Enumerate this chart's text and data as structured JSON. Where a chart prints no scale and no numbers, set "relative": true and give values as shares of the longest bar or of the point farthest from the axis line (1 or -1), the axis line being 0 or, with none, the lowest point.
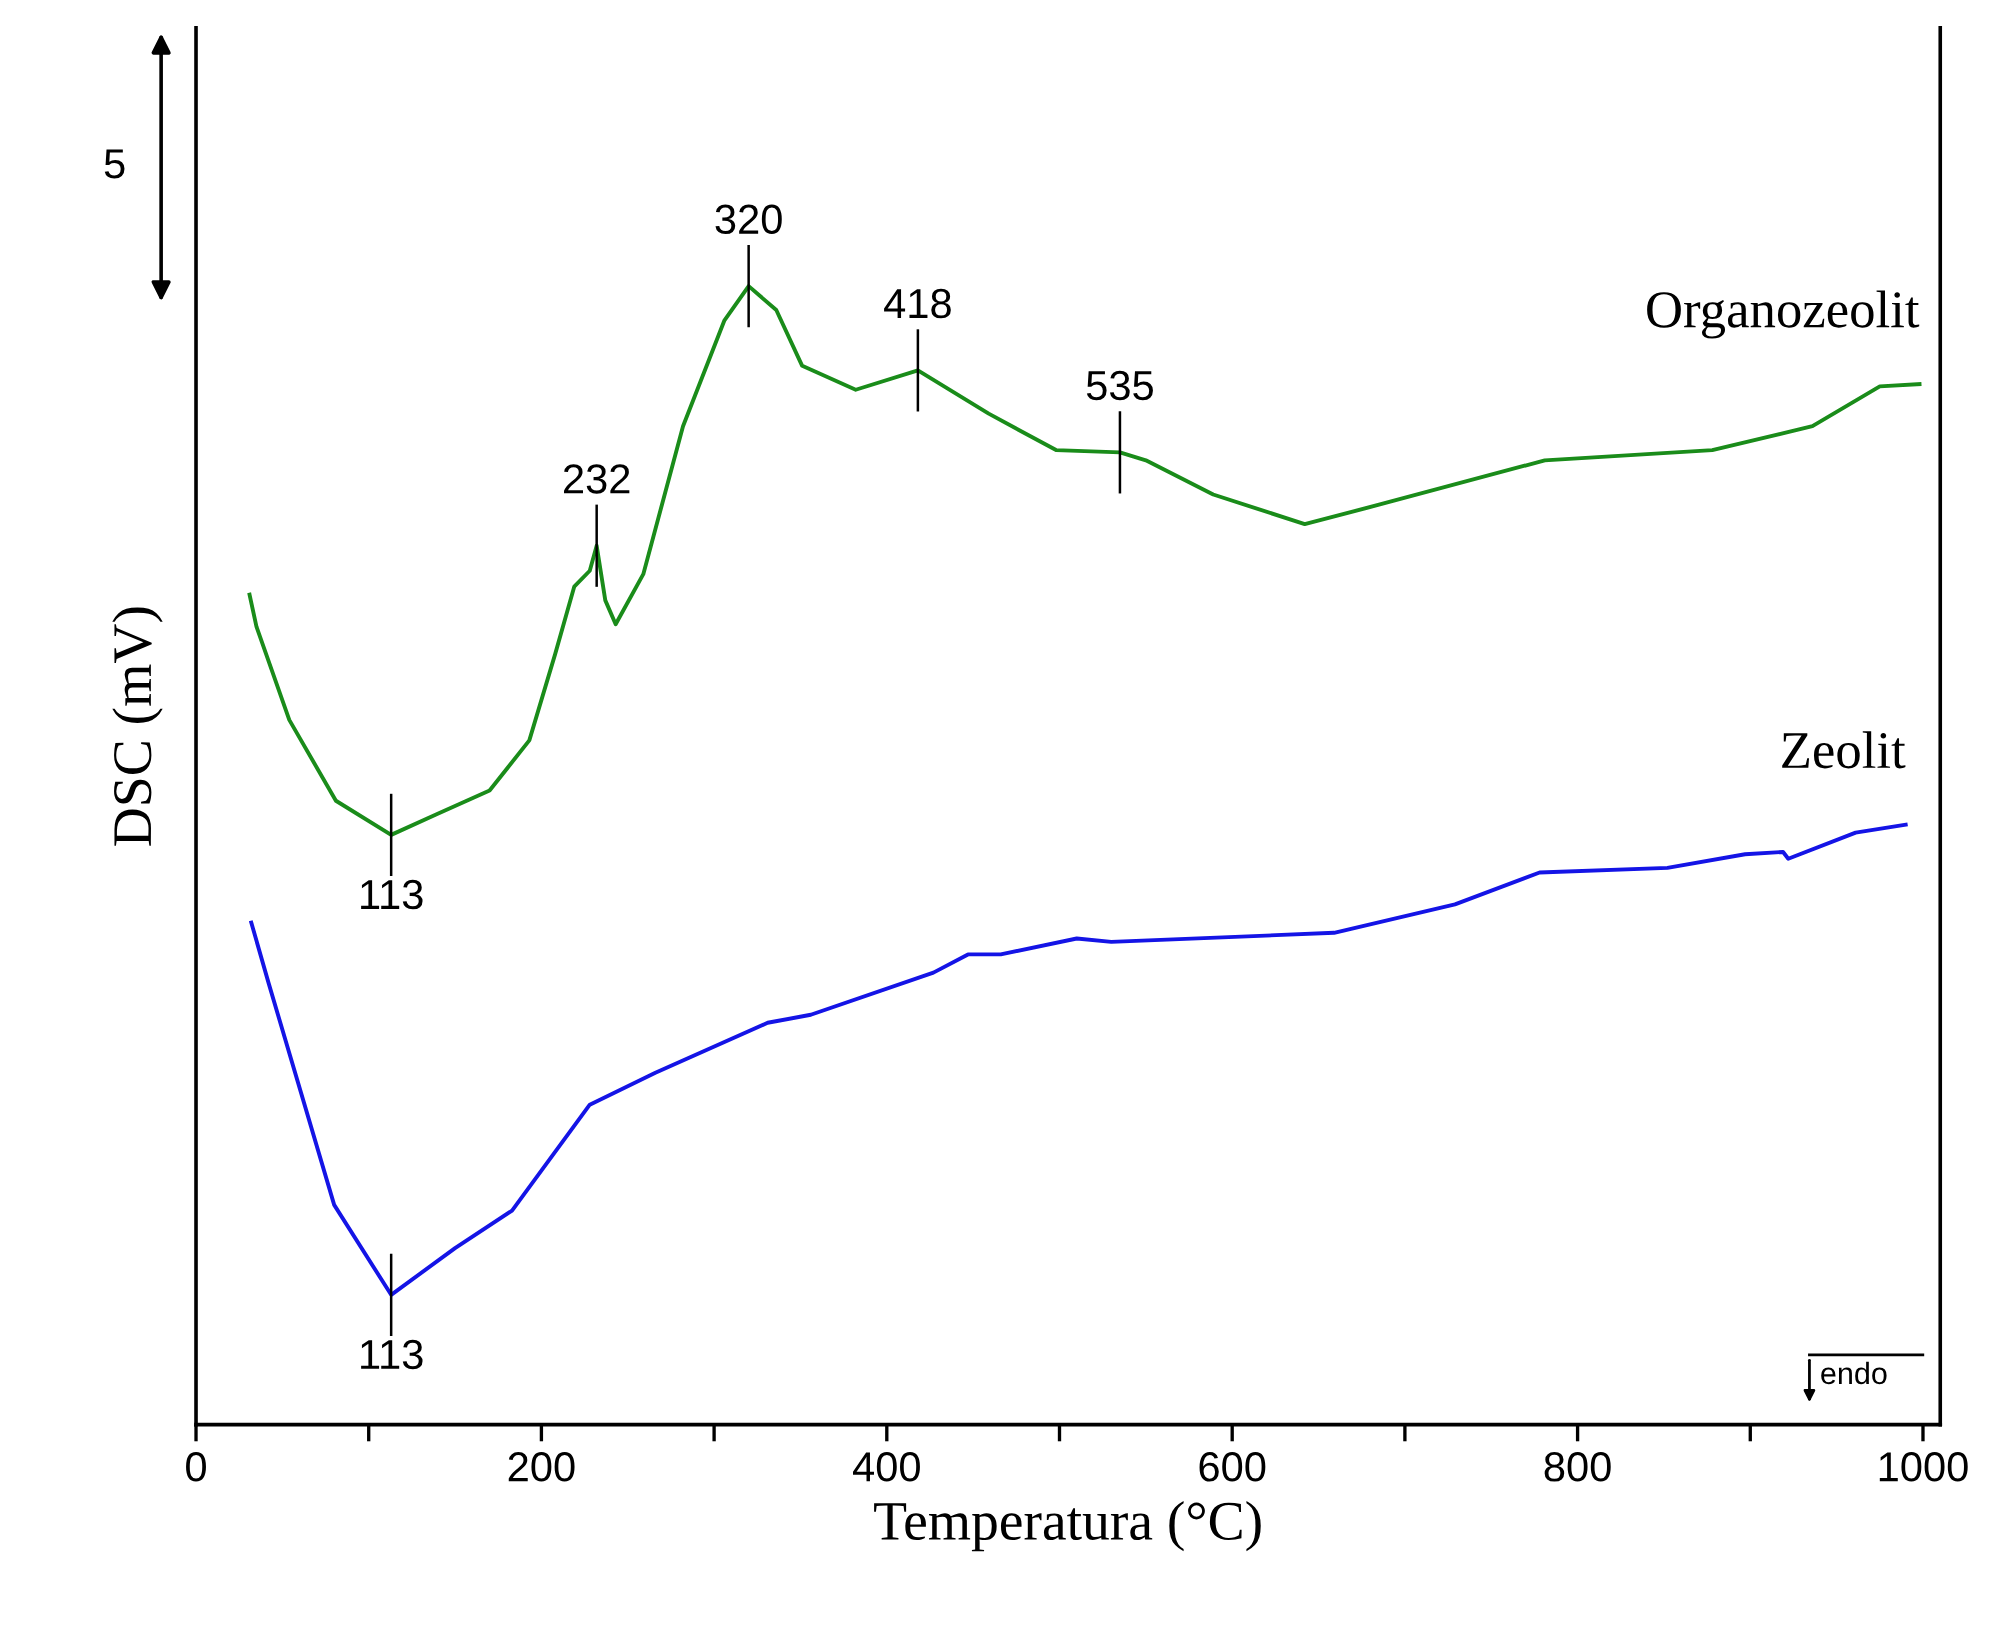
{
  "chart_data": {
    "type": "line",
    "relative": true,
    "xlabel": "Temperatura (°C)",
    "ylabel": "DSC (mV)",
    "xlim": [
      0,
      1010
    ],
    "xticks": [
      0,
      {
        "value": 100,
        "label": null
      },
      200,
      {
        "value": 300,
        "label": null
      },
      400,
      {
        "value": 500,
        "label": null
      },
      600,
      {
        "value": 700,
        "label": null
      },
      800,
      {
        "value": 900,
        "label": null
      },
      1000
    ],
    "grid": false,
    "legend": false,
    "tick_labels": "x",
    "marker": "none",
    "line_style": "solid",
    "series": [
      {
        "name": "Organozeolit",
        "color": "#1a8c1a",
        "x": [
          31,
          35,
          54,
          81,
          113,
          139,
          170,
          193,
          208,
          219,
          228,
          232,
          237,
          243,
          259,
          282,
          306,
          320,
          336,
          351,
          382,
          418,
          459,
          498,
          535,
          550,
          589,
          642,
          685,
          781,
          878,
          936,
          975,
          998
        ],
        "values": [
          0.729,
          0.701,
          0.619,
          0.548,
          0.518,
          0.536,
          0.557,
          0.601,
          0.677,
          0.736,
          0.75,
          0.772,
          0.724,
          0.703,
          0.747,
          0.877,
          0.97,
          1.0,
          0.979,
          0.93,
          0.909,
          0.926,
          0.888,
          0.856,
          0.854,
          0.847,
          0.817,
          0.791,
          0.808,
          0.847,
          0.856,
          0.877,
          0.912,
          0.914
        ]
      },
      {
        "name": "Zeolit",
        "color": "#1414e6",
        "x": [
          32,
          42,
          80,
          113,
          150,
          183,
          228,
          266,
          331,
          356,
          427,
          447,
          466,
          510,
          530,
          659,
          729,
          778,
          852,
          897,
          919,
          922,
          961,
          990
        ],
        "values": [
          0.441,
          0.388,
          0.193,
          0.114,
          0.155,
          0.188,
          0.281,
          0.309,
          0.353,
          0.36,
          0.397,
          0.413,
          0.413,
          0.427,
          0.424,
          0.432,
          0.457,
          0.485,
          0.489,
          0.501,
          0.503,
          0.497,
          0.52,
          0.527
        ]
      }
    ],
    "annotations": [
      "5",
      "endo",
      {
        "text": "113",
        "x": 113,
        "y": 0.518
      },
      {
        "text": "232",
        "x": 232,
        "y": 0.772
      },
      {
        "text": "320",
        "x": 320,
        "y": 1.0
      },
      {
        "text": "418",
        "x": 418,
        "y": 0.926
      },
      {
        "text": "535",
        "x": 535,
        "y": 0.854
      },
      {
        "text": "113",
        "x": 113,
        "y": 0.114
      }
    ]
  }
}
